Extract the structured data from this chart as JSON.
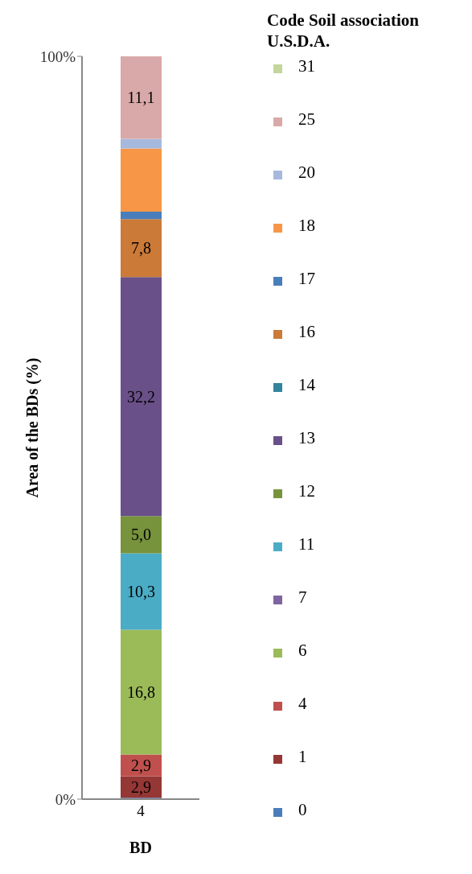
{
  "chart_data": {
    "type": "bar",
    "stacked": true,
    "categories": [
      "4"
    ],
    "xlabel": "BD",
    "ylabel": "Area of the BDs (%)",
    "legend_title": "Code Soil association U.S.D.A.",
    "legend": "right",
    "ylim": [
      0,
      100
    ],
    "yticks": [
      {
        "value": 0,
        "label": "0%"
      },
      {
        "value": 100,
        "label": "100%"
      }
    ],
    "series": [
      {
        "name": "0",
        "color": "#4a7ebb",
        "values": [
          0.2
        ],
        "value_labels": [
          null
        ]
      },
      {
        "name": "1",
        "color": "#953735",
        "values": [
          2.9
        ],
        "value_labels": [
          "2,9"
        ]
      },
      {
        "name": "4",
        "color": "#c0504d",
        "values": [
          2.9
        ],
        "value_labels": [
          "2,9"
        ]
      },
      {
        "name": "6",
        "color": "#9bbb59",
        "values": [
          16.8
        ],
        "value_labels": [
          "16,8"
        ]
      },
      {
        "name": "7",
        "color": "#8064a2",
        "values": [
          0
        ],
        "value_labels": [
          null
        ]
      },
      {
        "name": "11",
        "color": "#4bacc6",
        "values": [
          10.3
        ],
        "value_labels": [
          "10,3"
        ]
      },
      {
        "name": "12",
        "color": "#77933c",
        "values": [
          5.0
        ],
        "value_labels": [
          "5,0"
        ]
      },
      {
        "name": "13",
        "color": "#6a5088",
        "values": [
          32.2
        ],
        "value_labels": [
          "32,2"
        ]
      },
      {
        "name": "14",
        "color": "#31859c",
        "values": [
          0
        ],
        "value_labels": [
          null
        ]
      },
      {
        "name": "16",
        "color": "#cb7a38",
        "values": [
          7.8
        ],
        "value_labels": [
          "7,8"
        ]
      },
      {
        "name": "17",
        "color": "#4a7ebb",
        "values": [
          1.0
        ],
        "value_labels": [
          null
        ]
      },
      {
        "name": "18",
        "color": "#f79646",
        "values": [
          8.5
        ],
        "value_labels": [
          null
        ]
      },
      {
        "name": "20",
        "color": "#a6b9dc",
        "values": [
          1.3
        ],
        "value_labels": [
          null
        ]
      },
      {
        "name": "25",
        "color": "#d9a9a9",
        "values": [
          11.1
        ],
        "value_labels": [
          "11,1"
        ]
      },
      {
        "name": "31",
        "color": "#c3d69b",
        "values": [
          0
        ],
        "value_labels": [
          null
        ]
      }
    ]
  }
}
